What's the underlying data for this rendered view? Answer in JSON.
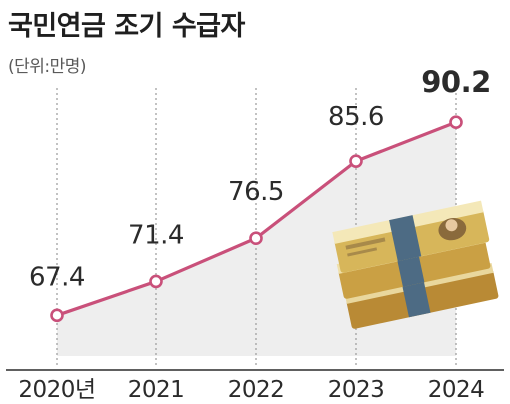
{
  "chart_data": {
    "type": "line",
    "title": "국민연금 조기 수급자",
    "unit_label": "(단위:만명)",
    "categories": [
      "2020년",
      "2021",
      "2022",
      "2023",
      "2024"
    ],
    "values": [
      67.4,
      71.4,
      76.5,
      85.6,
      90.2
    ],
    "value_labels": [
      "67.4",
      "71.4",
      "76.5",
      "85.6",
      "90.2"
    ],
    "ylim": [
      60,
      94
    ],
    "grid": "vertical dotted lines at each year",
    "colors": {
      "line": "#c9507a",
      "marker_fill": "#ffffff",
      "background_panel": "#eeeeee",
      "text": "#2b2b2b",
      "grid": "#9a9a9a"
    },
    "decoration": "stack-of-banknotes-illustration"
  }
}
